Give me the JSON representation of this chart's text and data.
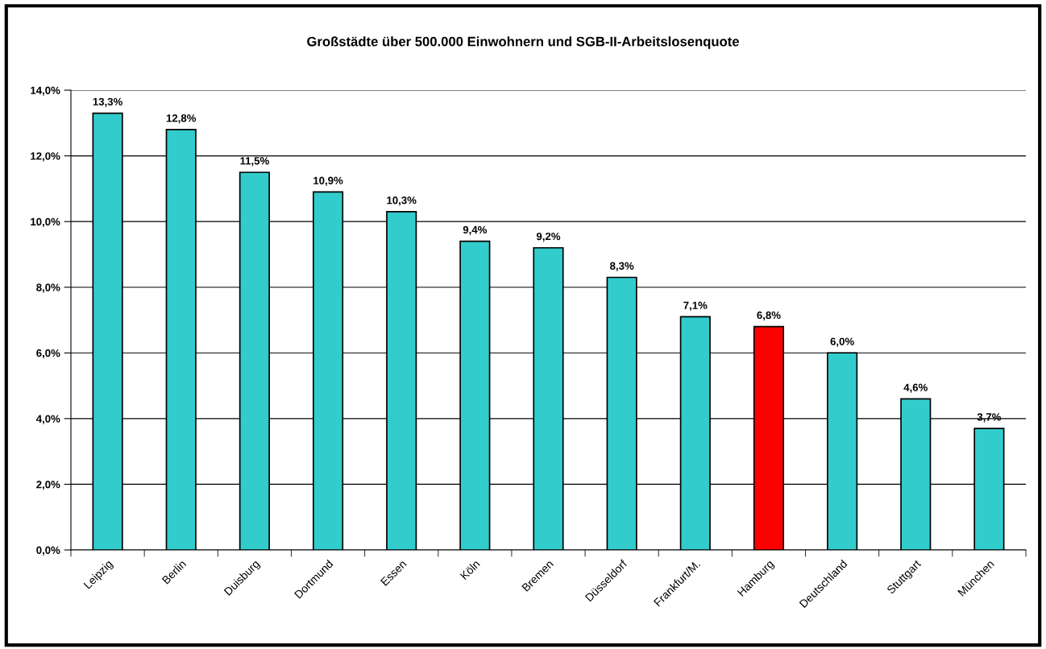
{
  "chart_data": {
    "type": "bar",
    "title": "Großstädte über 500.000 Einwohnern und SGB-II-Arbeitslosenquote",
    "categories": [
      "Leipzig",
      "Berlin",
      "Duisburg",
      "Dortmund",
      "Essen",
      "Köln",
      "Bremen",
      "Düsseldorf",
      "Frankfurt/M.",
      "Hamburg",
      "Deutschland",
      "Stuttgart",
      "München"
    ],
    "values": [
      13.3,
      12.8,
      11.5,
      10.9,
      10.3,
      9.4,
      9.2,
      8.3,
      7.1,
      6.8,
      6.0,
      4.6,
      3.7
    ],
    "colors": [
      "#33cccc",
      "#33cccc",
      "#33cccc",
      "#33cccc",
      "#33cccc",
      "#33cccc",
      "#33cccc",
      "#33cccc",
      "#33cccc",
      "#ff0000",
      "#33cccc",
      "#33cccc",
      "#33cccc"
    ],
    "value_labels": [
      "13,3%",
      "12,8%",
      "11,5%",
      "10,9%",
      "10,3%",
      "9,4%",
      "9,2%",
      "8,3%",
      "7,1%",
      "6,8%",
      "6,0%",
      "4,6%",
      "3,7%"
    ],
    "ylim": [
      0,
      14
    ],
    "yticks": [
      {
        "value": 0,
        "label": "0,0%"
      },
      {
        "value": 2,
        "label": "2,0%"
      },
      {
        "value": 4,
        "label": "4,0%"
      },
      {
        "value": 6,
        "label": "6,0%"
      },
      {
        "value": 8,
        "label": "8,0%"
      },
      {
        "value": 10,
        "label": "10,0%"
      },
      {
        "value": 12,
        "label": "12,0%"
      },
      {
        "value": 14,
        "label": "14,0%"
      }
    ],
    "grid": "y",
    "legend": false
  }
}
